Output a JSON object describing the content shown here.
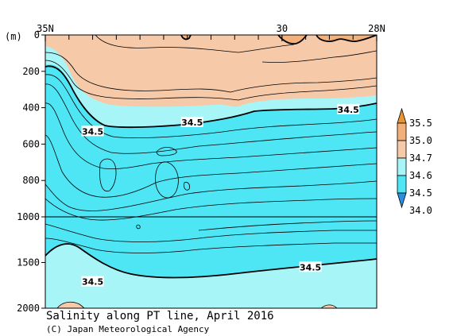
{
  "chart_data": {
    "type": "heatmap",
    "title": "Salinity along PT line, April 2016",
    "credit": "(C) Japan Meteorological Agency",
    "y_unit_label": "(m)",
    "x_tick_labels": [
      {
        "lat": 35,
        "label": "35N"
      },
      {
        "lat": 30,
        "label": "30"
      },
      {
        "lat": 28,
        "label": "28N"
      }
    ],
    "x_minor_ticks_lat": [
      34.5,
      34,
      33.5,
      33,
      32.5,
      32,
      31.5,
      31,
      30.5,
      29.5,
      29,
      28.5
    ],
    "xlim": [
      35,
      28
    ],
    "y_ticks": [
      {
        "depth": 0,
        "label": "0"
      },
      {
        "depth": 200,
        "label": "200"
      },
      {
        "depth": 400,
        "label": "400"
      },
      {
        "depth": 600,
        "label": "600"
      },
      {
        "depth": 800,
        "label": "800"
      },
      {
        "depth": 1000,
        "label": "1000"
      },
      {
        "depth": 1500,
        "label": "1500"
      },
      {
        "depth": 2000,
        "label": "2000"
      }
    ],
    "ylim": [
      0,
      2000
    ],
    "y_scale_break_depth": 1000,
    "colorbar": {
      "levels": [
        "34.0",
        "34.5",
        "34.6",
        "34.7",
        "35.0",
        "35.5"
      ],
      "colors": [
        "#2a8fe0",
        "#4ee6f5",
        "#a8f5f8",
        "#f6c9a8",
        "#f3b078",
        "#e8962e"
      ]
    },
    "contour_labels": [
      {
        "text": "34.5",
        "lat": 34.0,
        "depth": 530
      },
      {
        "text": "34.5",
        "lat": 31.9,
        "depth": 480
      },
      {
        "text": "34.5",
        "lat": 28.6,
        "depth": 410
      },
      {
        "text": "34.5",
        "lat": 34.0,
        "depth": 1710
      },
      {
        "text": "34.5",
        "lat": 29.4,
        "depth": 1550
      }
    ]
  }
}
